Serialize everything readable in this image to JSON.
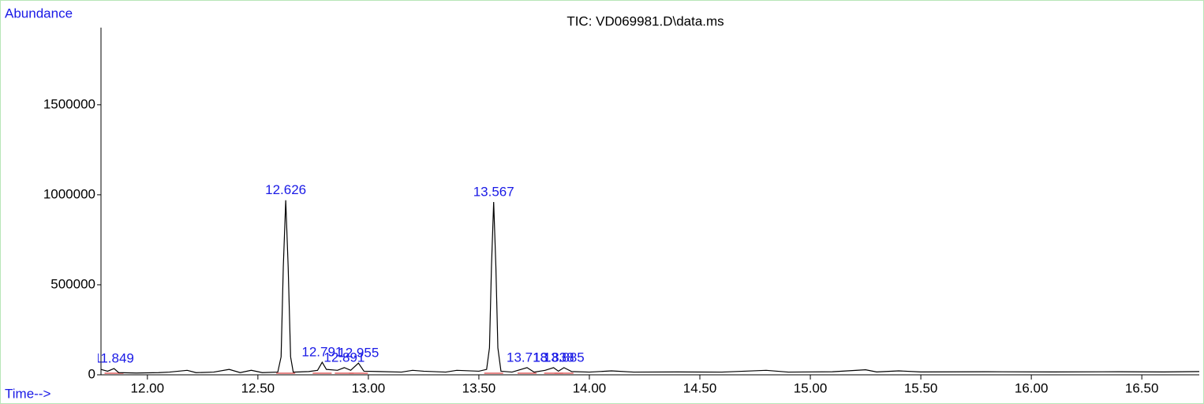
{
  "chart_data": {
    "type": "line",
    "title": "TIC: VD069981.D\\data.ms",
    "y_label": "Abundance",
    "x_label": "Time-->",
    "color": "#000000",
    "x": [
      11.79,
      11.82,
      11.849,
      11.87,
      11.95,
      12.05,
      12.1,
      12.18,
      12.22,
      12.3,
      12.37,
      12.42,
      12.47,
      12.52,
      12.59,
      12.605,
      12.615,
      12.626,
      12.637,
      12.648,
      12.66,
      12.73,
      12.77,
      12.791,
      12.81,
      12.86,
      12.891,
      12.92,
      12.955,
      12.98,
      13.05,
      13.15,
      13.2,
      13.25,
      13.35,
      13.4,
      13.5,
      13.535,
      13.548,
      13.557,
      13.567,
      13.577,
      13.586,
      13.6,
      13.65,
      13.718,
      13.75,
      13.8,
      13.838,
      13.86,
      13.885,
      13.92,
      14.0,
      14.1,
      14.2,
      14.4,
      14.6,
      14.8,
      14.9,
      15.1,
      15.25,
      15.3,
      15.4,
      15.5,
      15.8,
      16.1,
      16.4,
      16.6,
      16.76
    ],
    "values": [
      30000,
      20000,
      35000,
      12000,
      10000,
      12000,
      15000,
      25000,
      12000,
      15000,
      30000,
      12000,
      25000,
      12000,
      15000,
      100000,
      600000,
      970000,
      600000,
      100000,
      15000,
      18000,
      25000,
      70000,
      30000,
      25000,
      40000,
      25000,
      65000,
      20000,
      18000,
      15000,
      25000,
      20000,
      15000,
      25000,
      20000,
      30000,
      150000,
      600000,
      960000,
      600000,
      150000,
      20000,
      15000,
      40000,
      15000,
      25000,
      40000,
      20000,
      40000,
      18000,
      15000,
      22000,
      15000,
      16000,
      15000,
      25000,
      15000,
      17000,
      28000,
      16000,
      22000,
      16000,
      17000,
      16000,
      17000,
      16000,
      18000
    ],
    "annotations": [
      {
        "x": 11.849,
        "y": 35000
      },
      {
        "x": 12.626,
        "y": 970000
      },
      {
        "x": 12.791,
        "y": 70000
      },
      {
        "x": 12.891,
        "y": 40000
      },
      {
        "x": 12.955,
        "y": 65000
      },
      {
        "x": 13.567,
        "y": 960000
      },
      {
        "x": 13.718,
        "y": 40000
      },
      {
        "x": 13.838,
        "y": 40000
      },
      {
        "x": 13.885,
        "y": 40000
      }
    ],
    "xlim": [
      11.79,
      16.76
    ],
    "ylim": [
      0,
      1920000
    ],
    "xticks": [
      {
        "value": 12,
        "label": "12.00"
      },
      {
        "value": 12.5,
        "label": "12.50"
      },
      {
        "value": 13,
        "label": "13.00"
      },
      {
        "value": 13.5,
        "label": "13.50"
      },
      {
        "value": 14,
        "label": "14.00"
      },
      {
        "value": 14.5,
        "label": "14.50"
      },
      {
        "value": 15,
        "label": "15.00"
      },
      {
        "value": 15.5,
        "label": "15.50"
      },
      {
        "value": 16,
        "label": "16.00"
      },
      {
        "value": 16.5,
        "label": "16.50"
      }
    ],
    "yticks": [
      0,
      500000,
      1000000,
      1500000
    ]
  }
}
